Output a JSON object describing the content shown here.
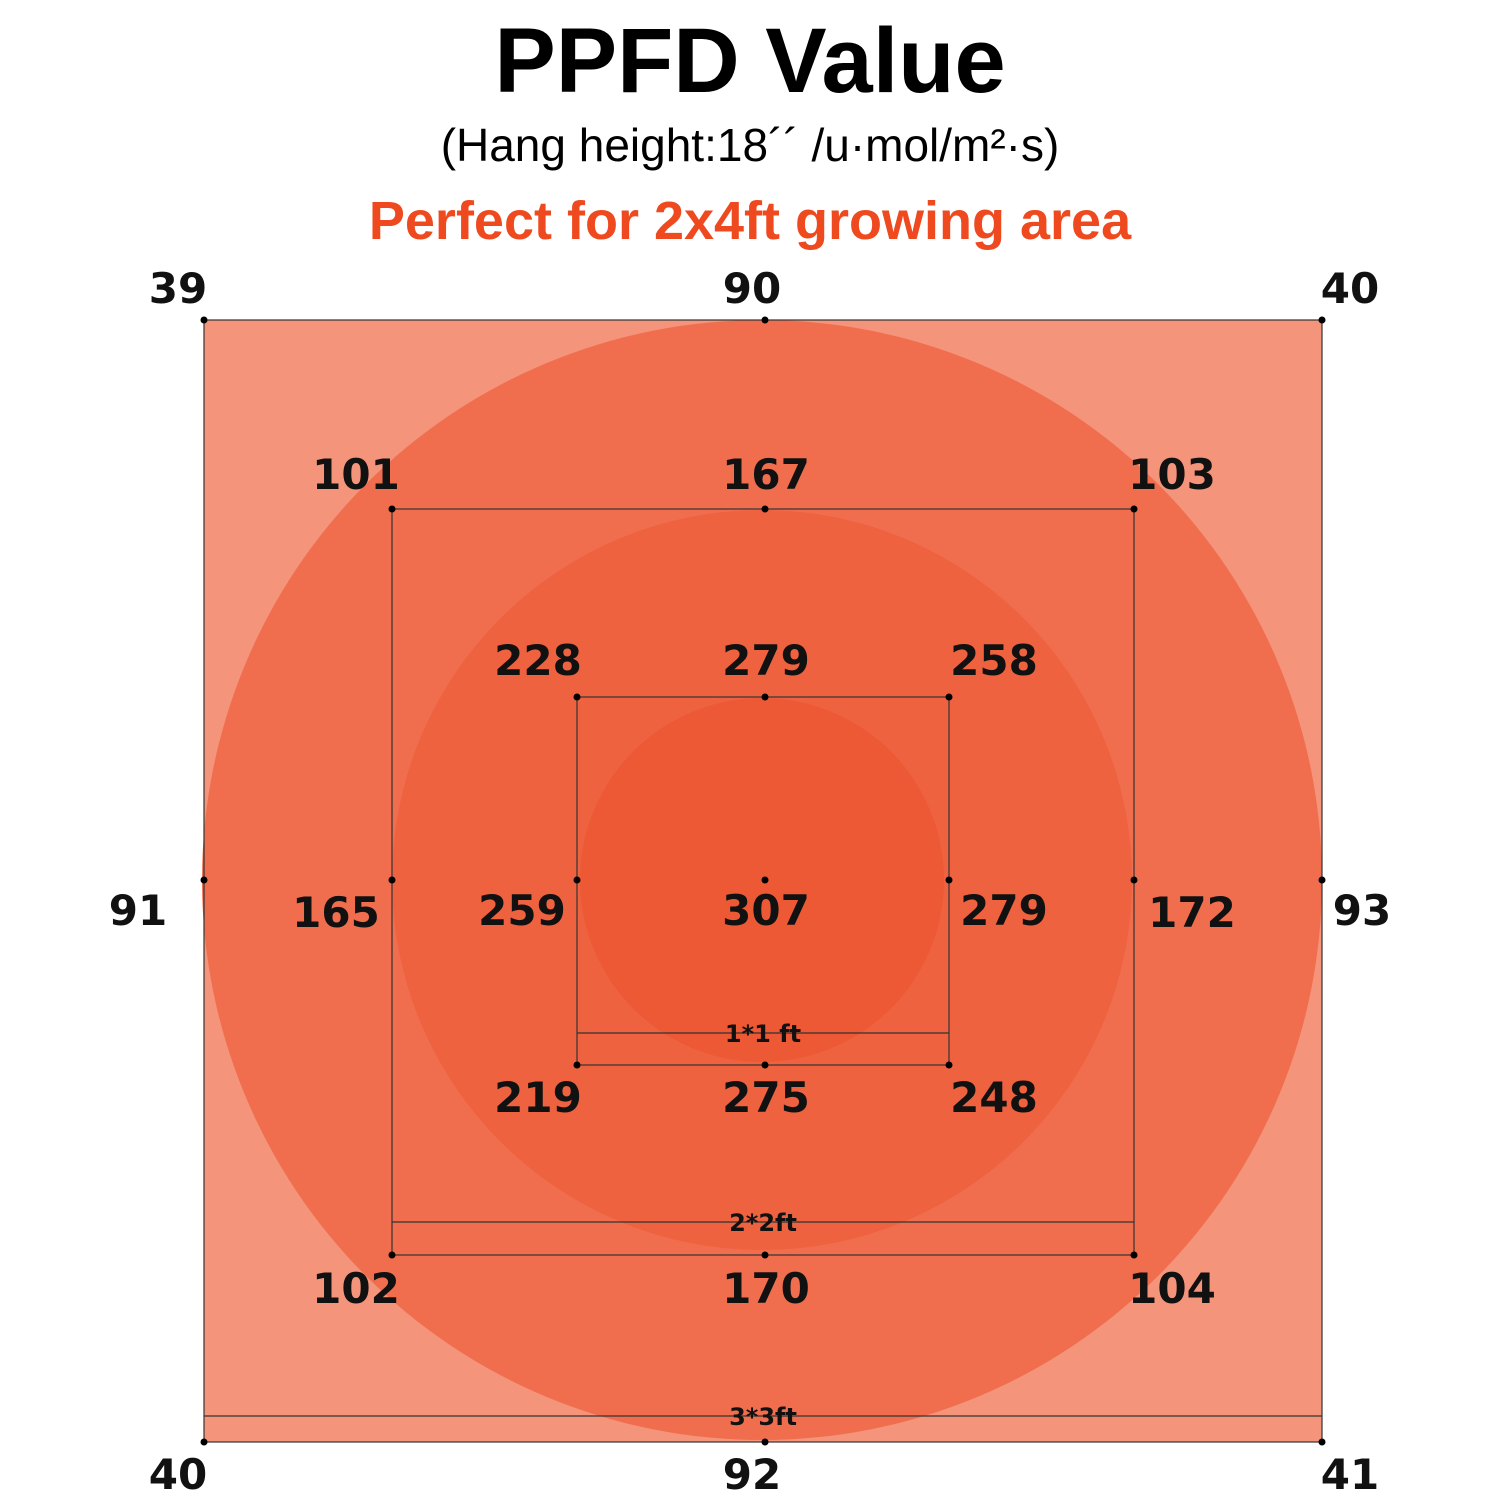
{
  "title": "PPFD Value",
  "subtitle": "(Hang height:18´´ /u·mol/m²·s)",
  "tagline": "Perfect for 2x4ft growing area",
  "colors": {
    "tagline": "#ef4a1f",
    "background_square": "#f4947a",
    "outer_circle": "#f06e4e",
    "middle_circle": "#ee6240",
    "inner_circle": "#ec5934",
    "lines": "#333333"
  },
  "zones": [
    {
      "label": "3*3ft",
      "readings": {
        "top_left": "39",
        "top_center": "90",
        "top_right": "40",
        "middle_left": "91",
        "middle_right": "93",
        "bottom_left": "40",
        "bottom_center": "92",
        "bottom_right": "41"
      }
    },
    {
      "label": "2*2ft",
      "readings": {
        "top_left": "101",
        "top_center": "167",
        "top_right": "103",
        "middle_left": "165",
        "middle_right": "172",
        "bottom_left": "102",
        "bottom_center": "170",
        "bottom_right": "104"
      }
    },
    {
      "label": "1*1 ft",
      "readings": {
        "top_left": "228",
        "top_center": "279",
        "top_right": "258",
        "middle_left": "259",
        "middle_right": "279",
        "bottom_left": "219",
        "bottom_center": "275",
        "bottom_right": "248"
      }
    }
  ],
  "center_reading": "307"
}
